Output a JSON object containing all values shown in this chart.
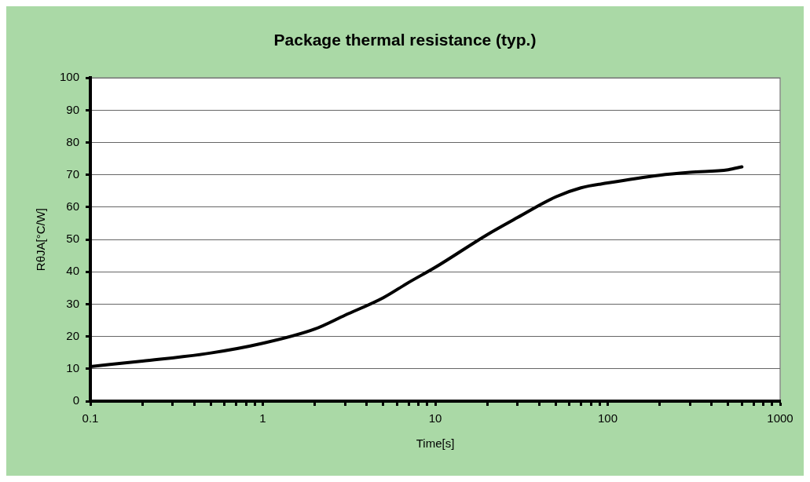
{
  "chart_data": {
    "type": "line",
    "title": "Package thermal resistance (typ.)",
    "xlabel": "Time[s]",
    "ylabel": "RθJA[°C/W]",
    "series": [
      {
        "color": "#000000",
        "x": [
          0.1,
          0.2,
          0.5,
          1,
          2,
          3,
          5,
          7,
          10,
          20,
          30,
          50,
          70,
          100,
          200,
          300,
          500,
          600
        ],
        "values": [
          10.7,
          12.4,
          14.9,
          17.9,
          22.3,
          26.6,
          32,
          36.7,
          41.4,
          51.5,
          56.8,
          63.2,
          66,
          67.5,
          69.9,
          70.8,
          71.6,
          72.5
        ]
      }
    ],
    "log": "x",
    "xlim": [
      0.1,
      1000
    ],
    "ylim": [
      0,
      100
    ],
    "xticks": [
      0.1,
      {
        "value": 0.2,
        "label": null
      },
      {
        "value": 0.3,
        "label": null
      },
      {
        "value": 0.4,
        "label": null
      },
      {
        "value": 0.5,
        "label": null
      },
      {
        "value": 0.6,
        "label": null
      },
      {
        "value": 0.7,
        "label": null
      },
      {
        "value": 0.8,
        "label": null
      },
      {
        "value": 0.9,
        "label": null
      },
      1,
      {
        "value": 2,
        "label": null
      },
      {
        "value": 3,
        "label": null
      },
      {
        "value": 4,
        "label": null
      },
      {
        "value": 5,
        "label": null
      },
      {
        "value": 6,
        "label": null
      },
      {
        "value": 7,
        "label": null
      },
      {
        "value": 8,
        "label": null
      },
      {
        "value": 9,
        "label": null
      },
      10,
      {
        "value": 20,
        "label": null
      },
      {
        "value": 30,
        "label": null
      },
      {
        "value": 40,
        "label": null
      },
      {
        "value": 50,
        "label": null
      },
      {
        "value": 60,
        "label": null
      },
      {
        "value": 70,
        "label": null
      },
      {
        "value": 80,
        "label": null
      },
      {
        "value": 90,
        "label": null
      },
      100,
      {
        "value": 200,
        "label": null
      },
      {
        "value": 300,
        "label": null
      },
      {
        "value": 400,
        "label": null
      },
      {
        "value": 500,
        "label": null
      },
      {
        "value": 600,
        "label": null
      },
      {
        "value": 700,
        "label": null
      },
      {
        "value": 800,
        "label": null
      },
      {
        "value": 900,
        "label": null
      },
      1000
    ],
    "yticks": [
      0,
      10,
      20,
      30,
      40,
      50,
      60,
      70,
      80,
      90,
      100
    ],
    "grid": "y",
    "legend": false,
    "marker": "none",
    "line_style": "solid"
  }
}
